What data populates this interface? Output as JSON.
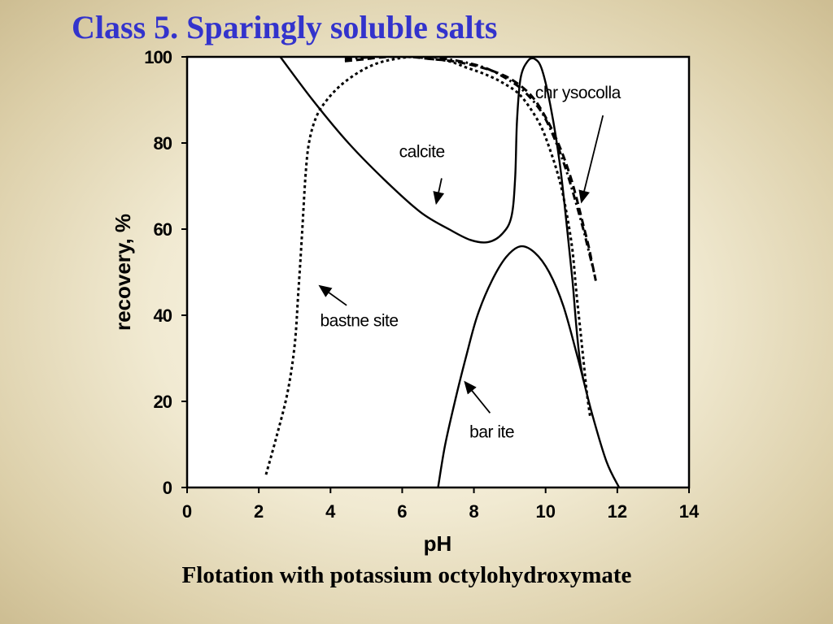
{
  "slide": {
    "title": "Class 5. Sparingly soluble salts",
    "caption": "Flotation with potassium octylohydroxymate"
  },
  "chart_data": {
    "type": "line",
    "title": "",
    "xlabel": "pH",
    "ylabel": "recovery, %",
    "xlim": [
      0,
      14
    ],
    "ylim": [
      0,
      100
    ],
    "xticks": [
      0,
      2,
      4,
      6,
      8,
      10,
      12,
      14
    ],
    "yticks": [
      0,
      20,
      40,
      60,
      80,
      100
    ],
    "grid": false,
    "legend": "none",
    "series": [
      {
        "name": "calcite",
        "style": "solid",
        "x": [
          2.6,
          3.5,
          4.5,
          5.5,
          6.5,
          7.3,
          7.9,
          8.4,
          8.8,
          9.05,
          9.15,
          9.2,
          9.3,
          9.5,
          9.7,
          9.9,
          10.15,
          10.4,
          10.6,
          10.75,
          10.85,
          10.95,
          11.05
        ],
        "y": [
          100,
          90,
          80,
          71.5,
          64,
          60,
          57.5,
          57,
          59,
          63,
          72,
          85,
          95,
          99,
          99.5,
          97,
          88,
          75,
          60,
          48,
          38,
          30,
          25
        ]
      },
      {
        "name": "barite",
        "style": "solid",
        "x": [
          7.0,
          7.2,
          7.5,
          7.8,
          8.1,
          8.5,
          8.9,
          9.3,
          9.7,
          10.1,
          10.5,
          10.9,
          11.3,
          11.7,
          12.05
        ],
        "y": [
          0,
          10,
          21,
          31,
          40,
          48,
          53.5,
          56,
          54.5,
          50,
          42,
          30,
          17,
          6,
          0
        ]
      },
      {
        "name": "bastnesite",
        "style": "dotted",
        "x": [
          2.2,
          2.5,
          2.8,
          3.0,
          3.1,
          3.2,
          3.3,
          3.4,
          3.6,
          3.9,
          4.3,
          4.8,
          5.3,
          5.8,
          6.3,
          6.8,
          7.3,
          7.8,
          8.3,
          8.8,
          9.3,
          9.8,
          10.1,
          10.4,
          10.6,
          10.75,
          10.85,
          10.95,
          11.05,
          11.15,
          11.25
        ],
        "y": [
          3,
          12,
          22,
          33,
          45,
          58,
          72,
          80,
          86,
          90,
          93.5,
          96.5,
          98.5,
          99.5,
          100,
          99.5,
          99,
          97.5,
          96,
          94,
          91,
          85,
          79,
          71,
          63,
          55,
          46,
          38,
          30,
          22,
          16
        ]
      },
      {
        "name": "chrysocolla",
        "style": "dashed",
        "x": [
          4.4,
          5.0,
          5.6,
          6.2,
          6.8,
          7.4,
          8.0,
          8.6,
          9.1,
          9.6,
          10.0,
          10.4,
          10.7,
          10.9,
          11.05,
          11.2,
          11.3,
          11.4
        ],
        "y": [
          99,
          99.5,
          100,
          100,
          99.5,
          99,
          98,
          96.5,
          94.5,
          91,
          86,
          79,
          72,
          66,
          61,
          56,
          52,
          48
        ]
      },
      {
        "name": "chrysocolla-dashdot",
        "style": "dashdot",
        "x": [
          4.4,
          5.2,
          6.0,
          6.8,
          7.6,
          8.3,
          8.9,
          9.4,
          9.9,
          10.3,
          10.6,
          10.85,
          11.05,
          11.2,
          11.35
        ],
        "y": [
          99.5,
          100,
          100.5,
          100,
          99,
          97.5,
          95,
          92,
          87,
          80,
          73,
          66,
          60,
          55,
          50
        ]
      }
    ],
    "annotations": [
      {
        "text": "calcite",
        "label_at": [
          6.55,
          76.7
        ],
        "arrow_from": [
          7.1,
          71.8
        ],
        "arrow_to": [
          6.95,
          66
        ]
      },
      {
        "text": "chr ysocolla",
        "label_at": [
          10.9,
          90.4
        ],
        "arrow_from": [
          11.6,
          86.4
        ],
        "arrow_to": [
          11.0,
          66.3
        ]
      },
      {
        "text": "bastne site",
        "label_at": [
          4.8,
          37.5
        ],
        "arrow_from": [
          4.45,
          42.3
        ],
        "arrow_to": [
          3.7,
          46.8
        ]
      },
      {
        "text": "bar ite",
        "label_at": [
          8.5,
          11.6
        ],
        "arrow_from": [
          8.45,
          17.3
        ],
        "arrow_to": [
          7.75,
          24.5
        ]
      }
    ]
  }
}
